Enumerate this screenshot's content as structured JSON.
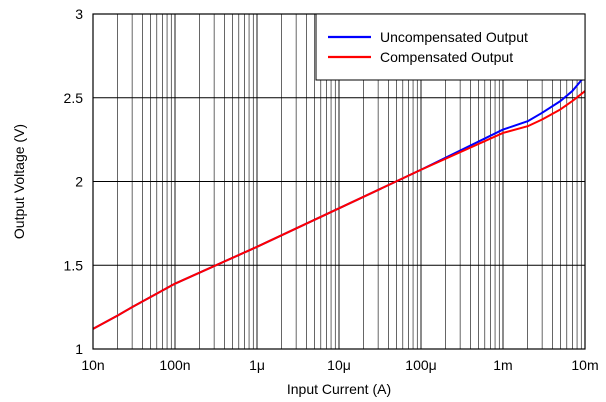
{
  "chart_data": {
    "type": "line",
    "xlabel": "Input Current (A)",
    "ylabel": "Output Voltage (V)",
    "x_scale": "log",
    "xlim": [
      1e-08,
      0.01
    ],
    "ylim": [
      1,
      3
    ],
    "grid": true,
    "legend_position": "top-right",
    "x_ticks": [
      {
        "value": 1e-08,
        "label": "10n"
      },
      {
        "value": 1e-07,
        "label": "100n"
      },
      {
        "value": 1e-06,
        "label": "1μ"
      },
      {
        "value": 1e-05,
        "label": "10μ"
      },
      {
        "value": 0.0001,
        "label": "100μ"
      },
      {
        "value": 0.001,
        "label": "1m"
      },
      {
        "value": 0.01,
        "label": "10m"
      }
    ],
    "y_ticks": [
      {
        "value": 1,
        "label": "1"
      },
      {
        "value": 1.5,
        "label": "1.5"
      },
      {
        "value": 2,
        "label": "2"
      },
      {
        "value": 2.5,
        "label": "2.5"
      },
      {
        "value": 3,
        "label": "3"
      }
    ],
    "series": [
      {
        "name": "Uncompensated Output",
        "color": "#0000ff",
        "x": [
          1e-08,
          2e-08,
          3e-08,
          1e-07,
          1e-06,
          1e-05,
          0.0001,
          0.001,
          0.002,
          0.003,
          0.005,
          0.007,
          0.01
        ],
        "y": [
          1.12,
          1.2,
          1.25,
          1.39,
          1.61,
          1.84,
          2.07,
          2.31,
          2.36,
          2.41,
          2.48,
          2.54,
          2.63
        ]
      },
      {
        "name": "Compensated Output",
        "color": "#ff0000",
        "x": [
          1e-08,
          2e-08,
          3e-08,
          1e-07,
          1e-06,
          1e-05,
          0.0001,
          0.001,
          0.002,
          0.003,
          0.005,
          0.007,
          0.01
        ],
        "y": [
          1.12,
          1.2,
          1.25,
          1.39,
          1.61,
          1.84,
          2.07,
          2.29,
          2.33,
          2.37,
          2.43,
          2.48,
          2.54
        ]
      }
    ]
  }
}
